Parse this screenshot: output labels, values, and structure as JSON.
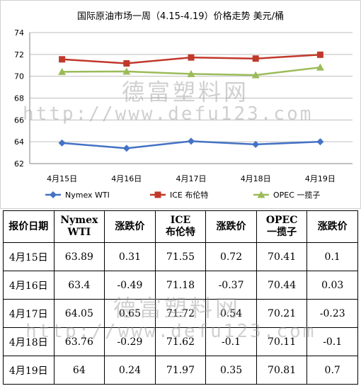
{
  "chart_data": {
    "type": "line",
    "title": "国际原油市场一周（4.15-4.19）价格走势   美元/桶",
    "categories": [
      "4月15日",
      "4月16日",
      "4月17日",
      "4月18日",
      "4月19日"
    ],
    "series": [
      {
        "name": "Nymex WTI",
        "color": "#4472C4",
        "marker": "diamond",
        "values": [
          63.89,
          63.4,
          64.05,
          63.76,
          64
        ]
      },
      {
        "name": "ICE 布伦特",
        "color": "#C0392B",
        "marker": "square",
        "values": [
          71.55,
          71.18,
          71.72,
          71.62,
          71.97
        ]
      },
      {
        "name": "OPEC 一揽子",
        "color": "#9BBB59",
        "marker": "triangle",
        "values": [
          70.41,
          70.44,
          70.21,
          70.11,
          70.81
        ]
      }
    ],
    "ylim": [
      62,
      74
    ],
    "yticks": [
      62,
      64,
      66,
      68,
      70,
      72,
      74
    ],
    "grid": true,
    "legend": "bottom"
  },
  "table": {
    "headers": [
      [
        "报价日期"
      ],
      [
        "Nymex",
        "WTI"
      ],
      [
        "涨跌价"
      ],
      [
        "ICE",
        "布伦特"
      ],
      [
        "涨跌价"
      ],
      [
        "OPEC",
        "一揽子"
      ],
      [
        "涨跌价"
      ]
    ],
    "rows": [
      [
        "4月15日",
        "63.89",
        "0.31",
        "71.55",
        "0.72",
        "70.41",
        "0.1"
      ],
      [
        "4月16日",
        "63.4",
        "-0.49",
        "71.18",
        "-0.37",
        "70.44",
        "0.03"
      ],
      [
        "4月17日",
        "64.05",
        "0.65",
        "71.72",
        "0.54",
        "70.21",
        "-0.23"
      ],
      [
        "4月18日",
        "63.76",
        "-0.29",
        "71.62",
        "-0.1",
        "70.11",
        "-0.1"
      ],
      [
        "4月19日",
        "64",
        "0.24",
        "71.97",
        "0.35",
        "70.81",
        "0.7"
      ]
    ]
  },
  "watermark": {
    "name": "德富塑料网",
    "url": "http://www.defu123.com"
  }
}
